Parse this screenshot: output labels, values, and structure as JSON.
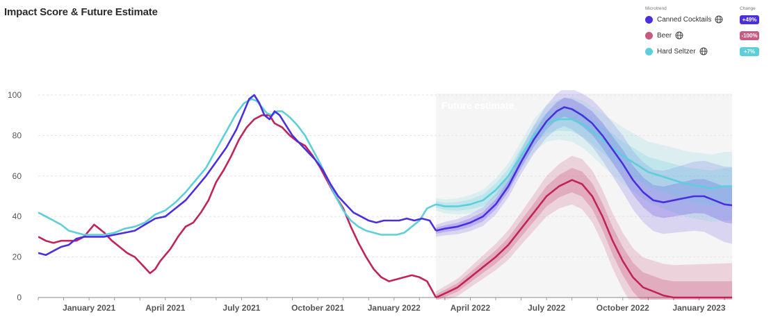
{
  "chart_data": {
    "type": "line",
    "title": "Impact Score & Future Estimate",
    "xlabel": "",
    "ylabel": "",
    "ylim": [
      0,
      100
    ],
    "yticks": [
      0,
      20,
      40,
      60,
      80,
      100
    ],
    "x_range_months": [
      0,
      27.3
    ],
    "x_tick_labels": [
      {
        "label": "January 2021",
        "month": 2.0
      },
      {
        "label": "April 2021",
        "month": 5.0
      },
      {
        "label": "July 2021",
        "month": 8.0
      },
      {
        "label": "October 2021",
        "month": 11.0
      },
      {
        "label": "January 2022",
        "month": 14.0
      },
      {
        "label": "April 2022",
        "month": 17.0
      },
      {
        "label": "July 2022",
        "month": 20.0
      },
      {
        "label": "October 2022",
        "month": 23.0
      },
      {
        "label": "January 2023",
        "month": 26.0
      }
    ],
    "future_start_month": 15.65,
    "future_label": "Future estimate",
    "legend_header": "Microtrend",
    "change_header": "Change",
    "series": [
      {
        "name": "Canned Cocktails",
        "color": "#4a2fe0",
        "change": "+49%",
        "history": [
          [
            0,
            22
          ],
          [
            0.3,
            21
          ],
          [
            0.6,
            23
          ],
          [
            0.9,
            25
          ],
          [
            1.2,
            26
          ],
          [
            1.5,
            29
          ],
          [
            1.8,
            30
          ],
          [
            2.2,
            30
          ],
          [
            2.6,
            30
          ],
          [
            3.0,
            31
          ],
          [
            3.4,
            32
          ],
          [
            3.8,
            33
          ],
          [
            4.2,
            36
          ],
          [
            4.6,
            39
          ],
          [
            5.0,
            40
          ],
          [
            5.4,
            44
          ],
          [
            5.8,
            48
          ],
          [
            6.2,
            54
          ],
          [
            6.6,
            60
          ],
          [
            7.0,
            67
          ],
          [
            7.4,
            74
          ],
          [
            7.8,
            83
          ],
          [
            8.1,
            92
          ],
          [
            8.3,
            98
          ],
          [
            8.5,
            100
          ],
          [
            8.7,
            96
          ],
          [
            8.9,
            90
          ],
          [
            9.1,
            88
          ],
          [
            9.3,
            92
          ],
          [
            9.5,
            90
          ],
          [
            9.7,
            86
          ],
          [
            10.0,
            80
          ],
          [
            10.3,
            76
          ],
          [
            10.6,
            72
          ],
          [
            10.9,
            68
          ],
          [
            11.2,
            63
          ],
          [
            11.5,
            56
          ],
          [
            11.8,
            50
          ],
          [
            12.1,
            46
          ],
          [
            12.4,
            42
          ],
          [
            12.7,
            40
          ],
          [
            13.0,
            38
          ],
          [
            13.3,
            37
          ],
          [
            13.6,
            38
          ],
          [
            13.9,
            38
          ],
          [
            14.2,
            38
          ],
          [
            14.5,
            39
          ],
          [
            14.8,
            38
          ],
          [
            15.1,
            39
          ],
          [
            15.4,
            38
          ],
          [
            15.65,
            33
          ]
        ],
        "forecast": [
          [
            15.65,
            33
          ],
          [
            16.0,
            34
          ],
          [
            16.5,
            35
          ],
          [
            17.0,
            37
          ],
          [
            17.5,
            40
          ],
          [
            18.0,
            46
          ],
          [
            18.5,
            55
          ],
          [
            19.0,
            67
          ],
          [
            19.5,
            78
          ],
          [
            20.0,
            87
          ],
          [
            20.4,
            92
          ],
          [
            20.7,
            94
          ],
          [
            21.0,
            93
          ],
          [
            21.4,
            90
          ],
          [
            21.8,
            86
          ],
          [
            22.2,
            80
          ],
          [
            22.6,
            73
          ],
          [
            23.0,
            66
          ],
          [
            23.4,
            58
          ],
          [
            23.8,
            52
          ],
          [
            24.2,
            48
          ],
          [
            24.6,
            47
          ],
          [
            25.0,
            48
          ],
          [
            25.4,
            49
          ],
          [
            25.8,
            50
          ],
          [
            26.2,
            50
          ],
          [
            26.6,
            48
          ],
          [
            27.0,
            46
          ],
          [
            27.3,
            45.5
          ]
        ],
        "band_inner": [
          [
            15.65,
            1.5
          ],
          [
            19,
            3
          ],
          [
            21,
            5
          ],
          [
            23,
            7
          ],
          [
            25,
            8
          ],
          [
            27.3,
            9
          ]
        ],
        "band_outer": [
          [
            15.65,
            3
          ],
          [
            19,
            6
          ],
          [
            21,
            10
          ],
          [
            23,
            14
          ],
          [
            25,
            16
          ],
          [
            27.3,
            19
          ]
        ]
      },
      {
        "name": "Beer",
        "color": "#c0245a",
        "change": "-100%",
        "history": [
          [
            0,
            30
          ],
          [
            0.3,
            28
          ],
          [
            0.6,
            27
          ],
          [
            0.9,
            28
          ],
          [
            1.2,
            28
          ],
          [
            1.5,
            28
          ],
          [
            1.8,
            30
          ],
          [
            2.0,
            33
          ],
          [
            2.2,
            36
          ],
          [
            2.4,
            34
          ],
          [
            2.6,
            32
          ],
          [
            2.9,
            28
          ],
          [
            3.2,
            25
          ],
          [
            3.5,
            22
          ],
          [
            3.8,
            20
          ],
          [
            4.1,
            16
          ],
          [
            4.4,
            12
          ],
          [
            4.6,
            14
          ],
          [
            4.8,
            18
          ],
          [
            5.0,
            21
          ],
          [
            5.2,
            24
          ],
          [
            5.5,
            30
          ],
          [
            5.8,
            35
          ],
          [
            6.1,
            37
          ],
          [
            6.4,
            42
          ],
          [
            6.7,
            48
          ],
          [
            7.0,
            57
          ],
          [
            7.3,
            63
          ],
          [
            7.6,
            70
          ],
          [
            7.9,
            78
          ],
          [
            8.2,
            84
          ],
          [
            8.5,
            88
          ],
          [
            8.8,
            90
          ],
          [
            9.1,
            90
          ],
          [
            9.3,
            86
          ],
          [
            9.6,
            84
          ],
          [
            9.9,
            80
          ],
          [
            10.2,
            77
          ],
          [
            10.5,
            75
          ],
          [
            10.8,
            70
          ],
          [
            11.1,
            64
          ],
          [
            11.4,
            57
          ],
          [
            11.7,
            50
          ],
          [
            12.0,
            44
          ],
          [
            12.3,
            35
          ],
          [
            12.6,
            27
          ],
          [
            12.9,
            20
          ],
          [
            13.2,
            14
          ],
          [
            13.5,
            10
          ],
          [
            13.8,
            8
          ],
          [
            14.1,
            9
          ],
          [
            14.4,
            10
          ],
          [
            14.7,
            11
          ],
          [
            15.0,
            10
          ],
          [
            15.3,
            8
          ],
          [
            15.65,
            0
          ]
        ],
        "forecast": [
          [
            15.65,
            0
          ],
          [
            16.0,
            2
          ],
          [
            16.5,
            5
          ],
          [
            17.0,
            10
          ],
          [
            17.5,
            15
          ],
          [
            18.0,
            20
          ],
          [
            18.5,
            26
          ],
          [
            19.0,
            34
          ],
          [
            19.5,
            42
          ],
          [
            20.0,
            50
          ],
          [
            20.5,
            55
          ],
          [
            21.0,
            58
          ],
          [
            21.4,
            56
          ],
          [
            21.8,
            50
          ],
          [
            22.2,
            40
          ],
          [
            22.6,
            28
          ],
          [
            23.0,
            18
          ],
          [
            23.4,
            10
          ],
          [
            23.8,
            5
          ],
          [
            24.2,
            3
          ],
          [
            24.6,
            1
          ],
          [
            25.0,
            0
          ],
          [
            25.5,
            0
          ],
          [
            26.2,
            0
          ],
          [
            27.3,
            0
          ]
        ],
        "band_inner": [
          [
            15.65,
            1.5
          ],
          [
            19,
            4
          ],
          [
            21,
            6
          ],
          [
            23,
            7
          ],
          [
            25,
            8
          ],
          [
            27.3,
            8
          ]
        ],
        "band_outer": [
          [
            15.65,
            3
          ],
          [
            19,
            8
          ],
          [
            21,
            12
          ],
          [
            23,
            14
          ],
          [
            25,
            16
          ],
          [
            27.3,
            17
          ]
        ]
      },
      {
        "name": "Hard Seltzer",
        "color": "#5ccfdb",
        "change": "+7%",
        "history": [
          [
            0,
            42
          ],
          [
            0.3,
            40
          ],
          [
            0.6,
            38
          ],
          [
            0.9,
            36
          ],
          [
            1.2,
            33
          ],
          [
            1.5,
            32
          ],
          [
            1.8,
            31
          ],
          [
            2.2,
            31
          ],
          [
            2.6,
            31
          ],
          [
            3.0,
            32
          ],
          [
            3.4,
            34
          ],
          [
            3.8,
            35
          ],
          [
            4.2,
            37
          ],
          [
            4.6,
            41
          ],
          [
            5.0,
            43
          ],
          [
            5.4,
            47
          ],
          [
            5.8,
            52
          ],
          [
            6.2,
            58
          ],
          [
            6.6,
            64
          ],
          [
            7.0,
            73
          ],
          [
            7.4,
            82
          ],
          [
            7.8,
            91
          ],
          [
            8.1,
            96
          ],
          [
            8.4,
            98
          ],
          [
            8.6,
            97
          ],
          [
            8.8,
            94
          ],
          [
            9.0,
            91
          ],
          [
            9.2,
            90
          ],
          [
            9.4,
            92
          ],
          [
            9.6,
            92
          ],
          [
            9.9,
            89
          ],
          [
            10.2,
            85
          ],
          [
            10.5,
            80
          ],
          [
            10.8,
            73
          ],
          [
            11.1,
            66
          ],
          [
            11.4,
            58
          ],
          [
            11.7,
            50
          ],
          [
            12.0,
            43
          ],
          [
            12.3,
            38
          ],
          [
            12.6,
            35
          ],
          [
            12.9,
            33
          ],
          [
            13.2,
            32
          ],
          [
            13.5,
            31
          ],
          [
            13.8,
            31
          ],
          [
            14.1,
            31
          ],
          [
            14.4,
            32
          ],
          [
            14.7,
            35
          ],
          [
            15.0,
            38
          ],
          [
            15.3,
            44
          ],
          [
            15.65,
            46
          ]
        ],
        "forecast": [
          [
            15.65,
            46
          ],
          [
            16.0,
            45
          ],
          [
            16.5,
            45
          ],
          [
            17.0,
            46
          ],
          [
            17.5,
            48
          ],
          [
            18.0,
            53
          ],
          [
            18.5,
            60
          ],
          [
            19.0,
            70
          ],
          [
            19.5,
            80
          ],
          [
            20.0,
            86
          ],
          [
            20.5,
            88
          ],
          [
            21.0,
            88
          ],
          [
            21.5,
            85
          ],
          [
            22.0,
            80
          ],
          [
            22.5,
            75
          ],
          [
            23.0,
            70
          ],
          [
            23.5,
            66
          ],
          [
            24.0,
            62
          ],
          [
            24.5,
            60
          ],
          [
            25.0,
            58
          ],
          [
            25.5,
            56
          ],
          [
            26.0,
            55
          ],
          [
            26.5,
            54
          ],
          [
            27.0,
            55
          ],
          [
            27.3,
            55
          ]
        ],
        "band_inner": [
          [
            15.65,
            1.5
          ],
          [
            19,
            4
          ],
          [
            21,
            6
          ],
          [
            23,
            7
          ],
          [
            25,
            8
          ],
          [
            27.3,
            9
          ]
        ],
        "band_outer": [
          [
            15.65,
            3
          ],
          [
            19,
            7
          ],
          [
            21,
            11
          ],
          [
            23,
            14
          ],
          [
            25,
            16
          ],
          [
            27.3,
            17
          ]
        ]
      }
    ]
  },
  "legend": {
    "header": "Microtrend",
    "change_header": "Change",
    "globe_icon": "globe-icon"
  }
}
